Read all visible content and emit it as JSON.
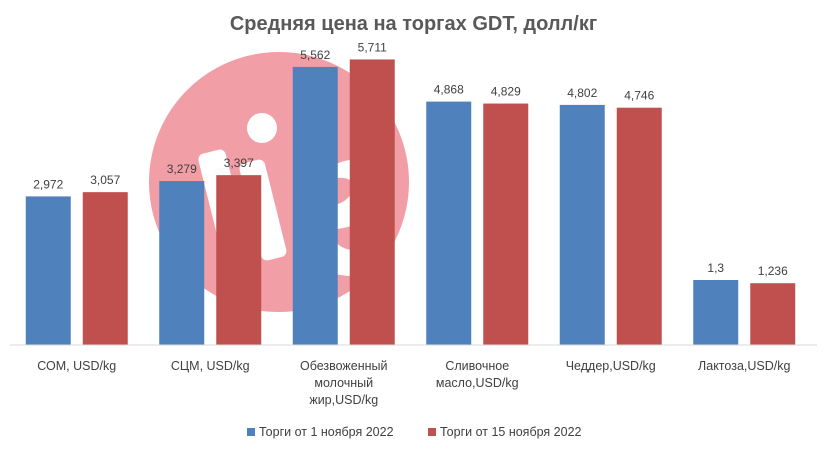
{
  "chart_data": {
    "type": "bar",
    "title": "Средняя цена на торгах GDT, долл/кг",
    "categories": [
      [
        "СОМ, USD/kg"
      ],
      [
        "СЦМ, USD/kg"
      ],
      [
        "Обезвоженный",
        "молочный",
        "жир,USD/kg"
      ],
      [
        "Сливочное",
        "масло,USD/kg"
      ],
      [
        "Чеддер,USD/kg"
      ],
      [
        "Лактоза,USD/kg"
      ]
    ],
    "series": [
      {
        "name": "Торги от 1 ноября 2022",
        "color": "#4F81BD",
        "values": [
          2.972,
          3.279,
          5.562,
          4.868,
          4.802,
          1.3
        ],
        "labels": [
          "2,972",
          "3,279",
          "5,562",
          "4,868",
          "4,802",
          "1,3"
        ]
      },
      {
        "name": "Торги от 15 ноября 2022",
        "color": "#C0504D",
        "values": [
          3.057,
          3.397,
          5.711,
          4.829,
          4.746,
          1.236
        ],
        "labels": [
          "3,057",
          "3,397",
          "5,711",
          "4,829",
          "4,746",
          "1,236"
        ]
      }
    ],
    "ylim": [
      0,
      6
    ],
    "grid": false,
    "legend": "bottom",
    "xlabel": "",
    "ylabel": ""
  },
  "watermark": {
    "shape": "circle-logo",
    "color": "#E8505F"
  }
}
